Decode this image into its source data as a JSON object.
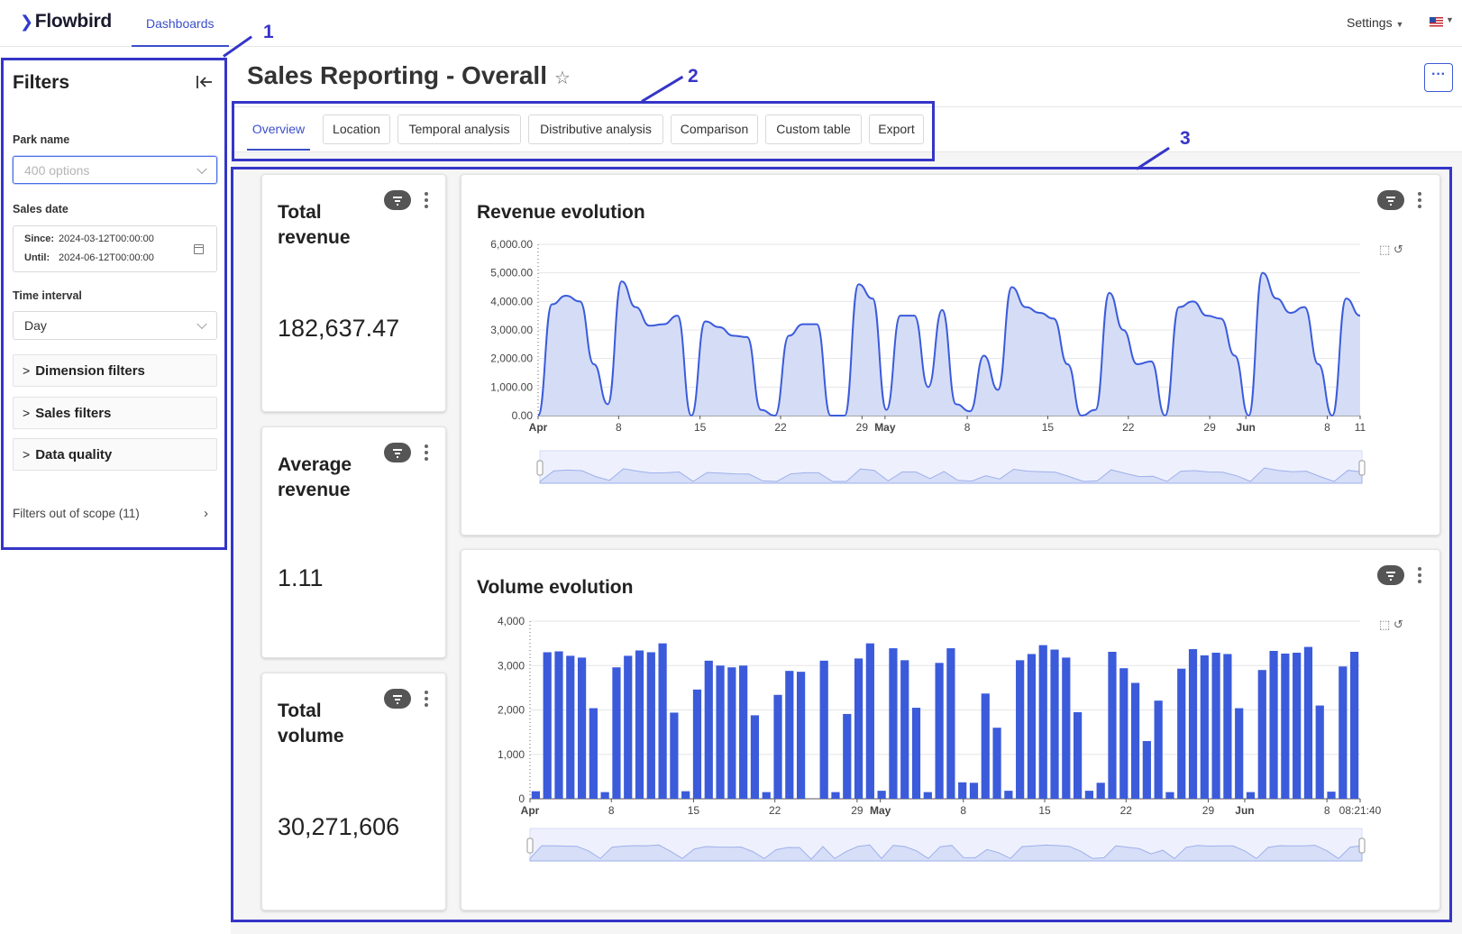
{
  "app": {
    "logo": "Flowbird",
    "nav_item": "Dashboards",
    "settings": "Settings"
  },
  "annotations": [
    "1",
    "2",
    "3"
  ],
  "sidebar": {
    "title": "Filters",
    "park_label": "Park name",
    "park_placeholder": "400 options",
    "sales_date_label": "Sales date",
    "since_label": "Since:",
    "since_value": "2024-03-12T00:00:00",
    "until_label": "Until:",
    "until_value": "2024-06-12T00:00:00",
    "interval_label": "Time interval",
    "interval_value": "Day",
    "panels": [
      "Dimension filters",
      "Sales filters",
      "Data quality"
    ],
    "out_of_scope": "Filters out of scope (11)"
  },
  "page": {
    "title": "Sales Reporting - Overall",
    "more": "···",
    "tabs": [
      "Overview",
      "Location",
      "Temporal analysis",
      "Distributive analysis",
      "Comparison",
      "Custom table",
      "Export"
    ],
    "active_tab": "Overview"
  },
  "kpis": [
    {
      "title": "Total revenue",
      "value": "182,637.47"
    },
    {
      "title": "Average revenue",
      "value": "1.11"
    },
    {
      "title": "Total volume",
      "value": "30,271,606"
    }
  ],
  "colors": {
    "accent": "#3b5bdb",
    "area_fill": "#d3dbf6",
    "annotation": "#3535c8"
  },
  "chart_data": [
    {
      "type": "area",
      "title": "Revenue evolution",
      "y_ticks": [
        "6,000.00",
        "5,000.00",
        "4,000.00",
        "3,000.00",
        "2,000.00",
        "1,000.00",
        "0.00"
      ],
      "ylim": [
        0,
        6000
      ],
      "x_ticks": [
        "Apr",
        "8",
        "15",
        "22",
        "29",
        "May",
        "8",
        "15",
        "22",
        "29",
        "Jun",
        "8",
        "11"
      ],
      "x_start": "2024-04-01",
      "values": [
        0,
        3900,
        4200,
        4000,
        1800,
        400,
        4700,
        3800,
        3150,
        3200,
        3500,
        0,
        3300,
        3100,
        2800,
        2750,
        200,
        0,
        2800,
        3200,
        3200,
        0,
        0,
        4600,
        4100,
        200,
        3500,
        3500,
        1000,
        3700,
        400,
        150,
        2100,
        900,
        4500,
        3800,
        3600,
        3400,
        1800,
        0,
        200,
        4300,
        3000,
        1800,
        1900,
        0,
        3800,
        4000,
        3500,
        3400,
        2100,
        0,
        5000,
        4100,
        3600,
        3800,
        1800,
        0,
        4100,
        3500
      ]
    },
    {
      "type": "bar",
      "title": "Volume evolution",
      "y_ticks": [
        "4,000",
        "3,000",
        "2,000",
        "1,000",
        "0"
      ],
      "ylim": [
        0,
        4000
      ],
      "x_ticks": [
        "Apr",
        "8",
        "15",
        "22",
        "29",
        "May",
        "8",
        "15",
        "22",
        "29",
        "Jun",
        "8",
        "08:21:40"
      ],
      "x_start": "2024-04-01",
      "values": [
        170,
        3300,
        3320,
        3220,
        3180,
        2040,
        150,
        2960,
        3220,
        3340,
        3300,
        3500,
        1940,
        170,
        2460,
        3110,
        3000,
        2960,
        3000,
        1880,
        150,
        2340,
        2880,
        2860,
        0,
        3110,
        150,
        1910,
        3160,
        3500,
        180,
        3390,
        3120,
        2050,
        150,
        3060,
        3390,
        370,
        360,
        2370,
        1600,
        180,
        3120,
        3260,
        3460,
        3360,
        3180,
        1950,
        180,
        360,
        3310,
        2940,
        2610,
        1300,
        2210,
        150,
        2930,
        3370,
        3230,
        3290,
        3260,
        2040,
        150,
        2900,
        3330,
        3270,
        3290,
        3420,
        2100,
        160,
        2980,
        3310
      ]
    }
  ]
}
